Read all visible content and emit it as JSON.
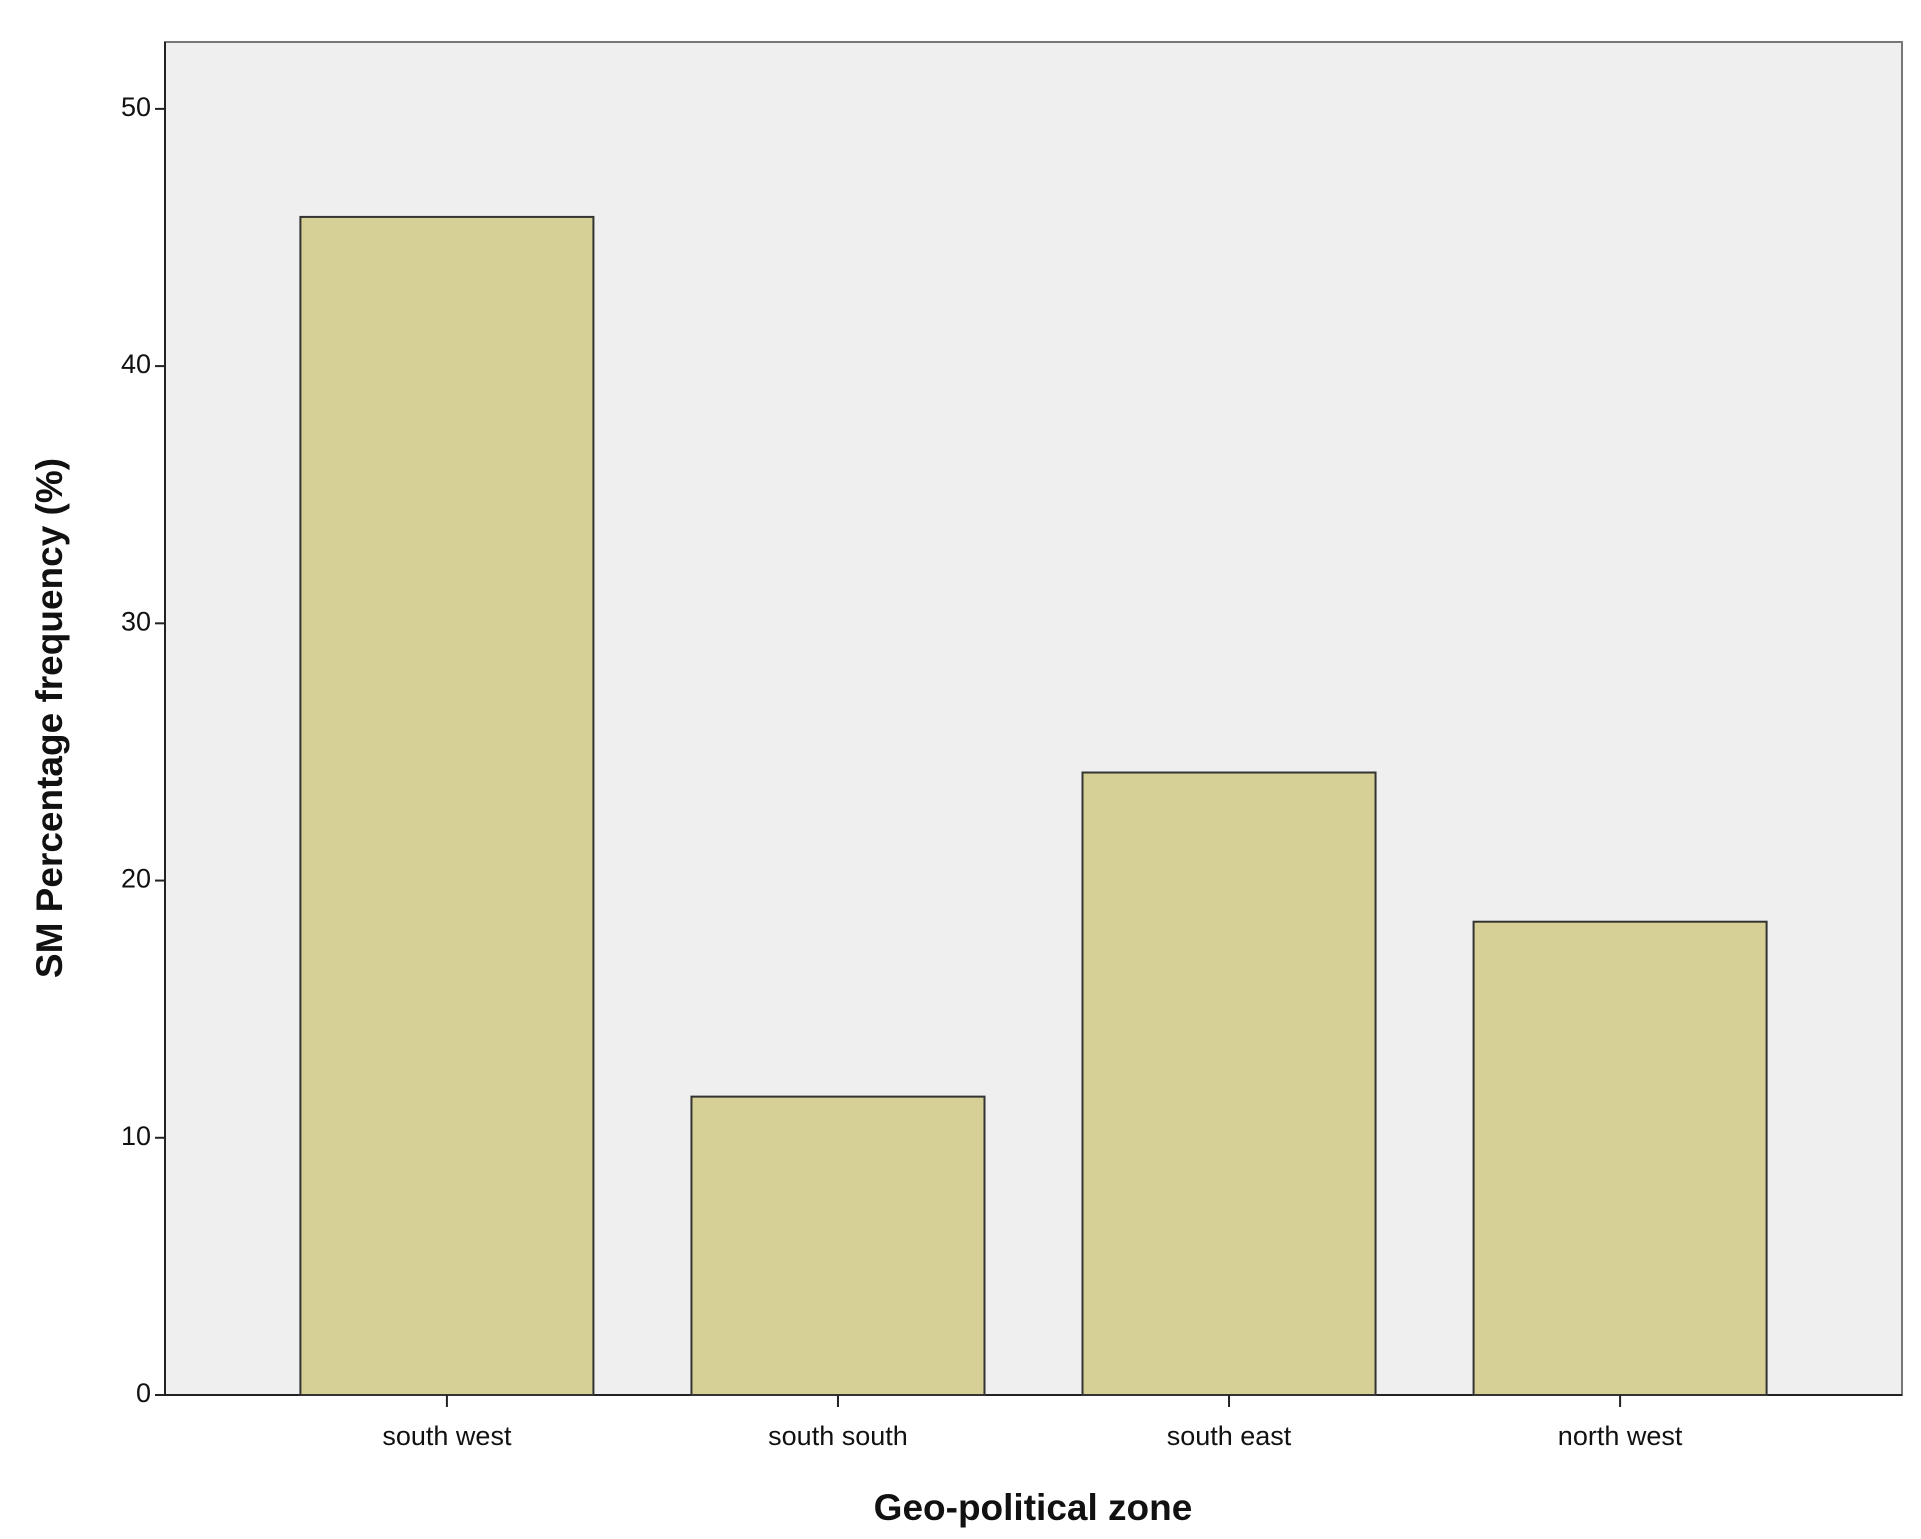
{
  "chart_data": {
    "type": "bar",
    "x_label": "Geo-political zone",
    "y_label": "SM Percentage frequency (%)",
    "categories": [
      "south west",
      "south south",
      "south east",
      "north west"
    ],
    "values": [
      45.8,
      11.6,
      24.2,
      18.4
    ],
    "color": "#d6cf96",
    "ylim": [
      0,
      52.6
    ],
    "yticks": [
      0,
      10,
      20,
      30,
      40,
      50
    ],
    "grid": false
  }
}
